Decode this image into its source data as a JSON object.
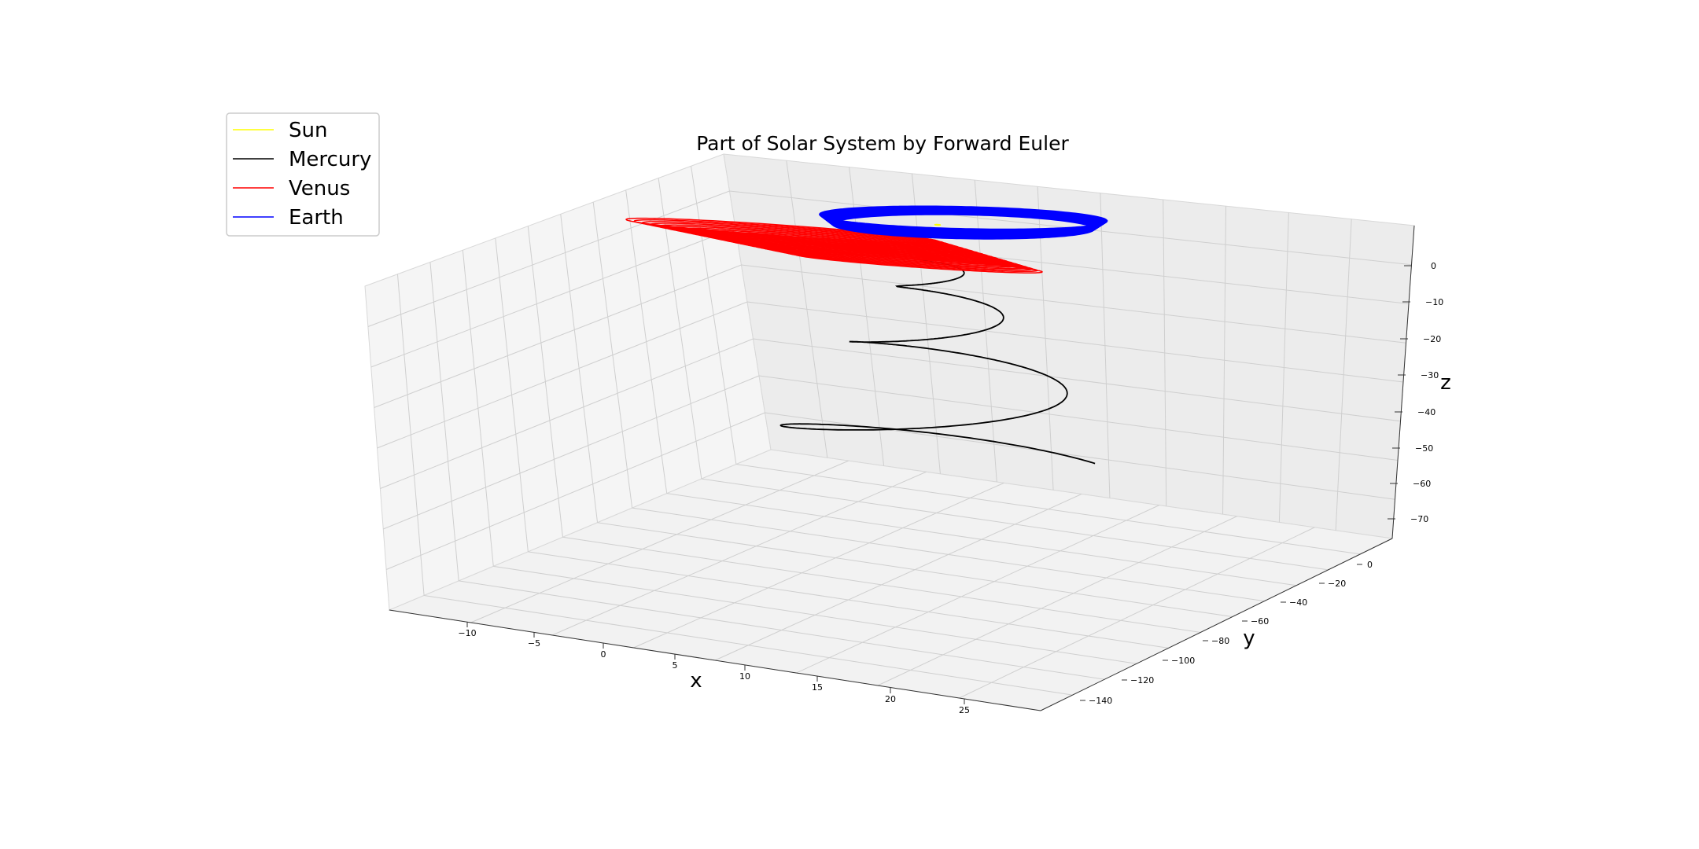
{
  "chart_data": {
    "type": "line",
    "projection": "3d",
    "title": "Part of Solar System by Forward Euler",
    "xlabel": "x",
    "ylabel": "y",
    "zlabel": "z",
    "xticks": [
      "−10",
      "−5",
      "0",
      "5",
      "10",
      "15",
      "20",
      "25"
    ],
    "yticks": [
      "0",
      "−20",
      "−40",
      "−60",
      "−80",
      "−100",
      "−120",
      "−140"
    ],
    "zticks": [
      "0",
      "−10",
      "−20",
      "−30",
      "−40",
      "−50",
      "−60",
      "−70"
    ],
    "xlim": [
      -14,
      29
    ],
    "ylim": [
      10,
      -155
    ],
    "zlim": [
      -76,
      10
    ],
    "grid": true,
    "legend_position": "top-left",
    "series": [
      {
        "name": "Sun",
        "color": "#ffff00",
        "center": [
          0,
          0
        ],
        "z": 0,
        "radius": 0.02,
        "turns": 1
      },
      {
        "name": "Mercury",
        "color": "#000000",
        "center": [
          0,
          0
        ],
        "z": 0,
        "turns": 4,
        "description": "outward spiral growing in radius and dropping in z"
      },
      {
        "name": "Venus",
        "color": "#ff0000",
        "center": [
          0,
          0
        ],
        "z": 0,
        "radius": 1.0,
        "turns": 40
      },
      {
        "name": "Earth",
        "color": "#0000ff",
        "center": [
          0,
          0
        ],
        "z": 0,
        "radius": 1.4,
        "turns": 40
      }
    ]
  }
}
